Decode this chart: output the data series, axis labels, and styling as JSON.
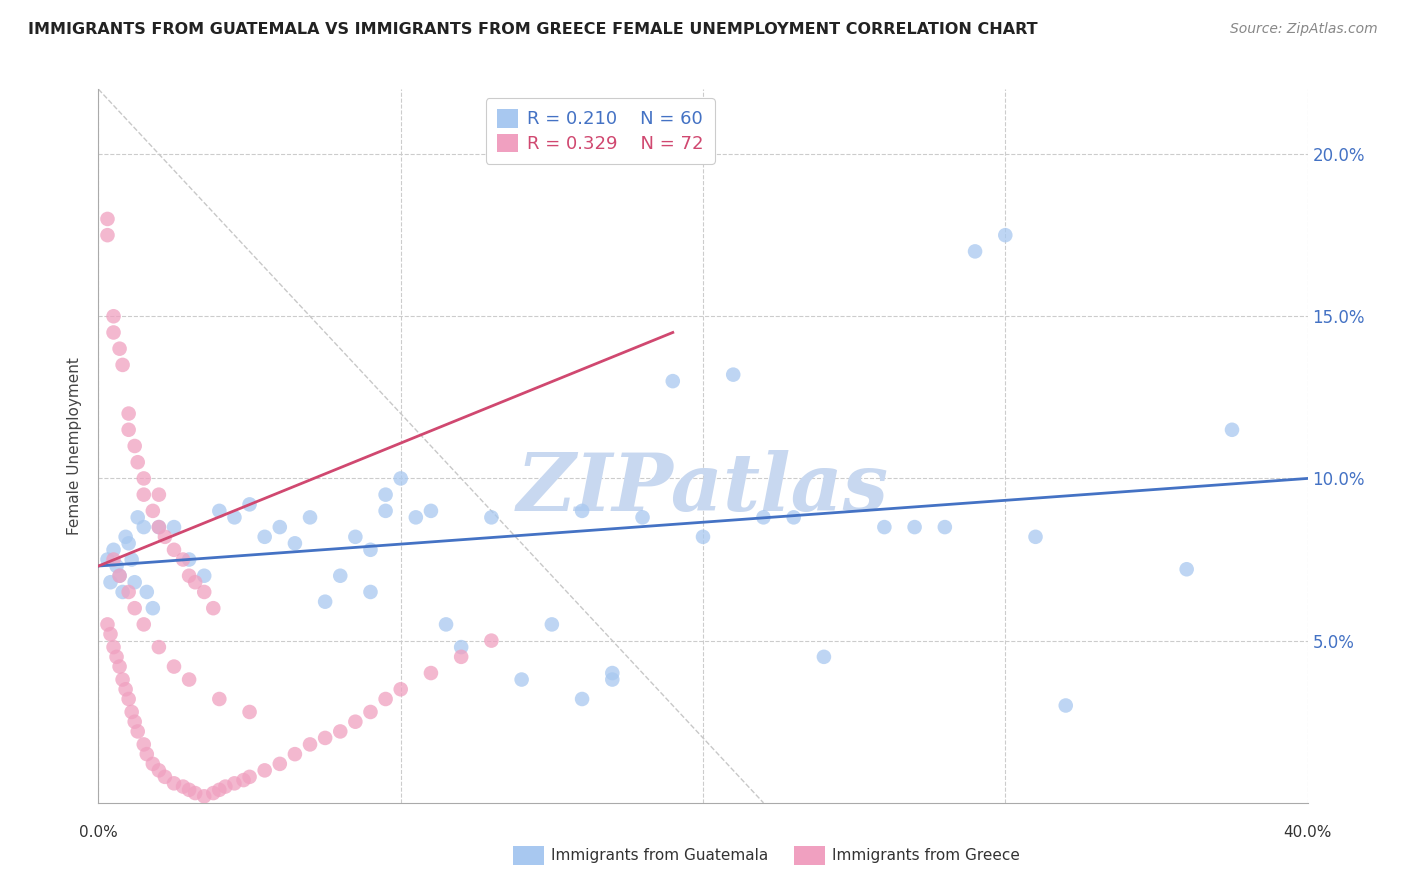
{
  "title": "IMMIGRANTS FROM GUATEMALA VS IMMIGRANTS FROM GREECE FEMALE UNEMPLOYMENT CORRELATION CHART",
  "source": "Source: ZipAtlas.com",
  "ylabel": "Female Unemployment",
  "xlim": [
    0.0,
    0.4
  ],
  "ylim": [
    0.0,
    0.22
  ],
  "legend_r1": "R = 0.210",
  "legend_n1": "N = 60",
  "legend_r2": "R = 0.329",
  "legend_n2": "N = 72",
  "color_guatemala": "#A8C8F0",
  "color_greece": "#F0A0C0",
  "color_trendline_guatemala": "#4472C4",
  "color_trendline_greece": "#D04870",
  "color_diagonal": "#C8C8C8",
  "watermark": "ZIPatlas",
  "watermark_color": "#C8D8F0",
  "guat_trend": [
    0.0,
    0.4,
    0.073,
    0.1
  ],
  "greece_trend": [
    0.0,
    0.19,
    0.073,
    0.145
  ],
  "diagonal": [
    0.0,
    0.22,
    0.22,
    0.0
  ],
  "guatemala_points_x": [
    0.003,
    0.004,
    0.005,
    0.006,
    0.007,
    0.008,
    0.009,
    0.01,
    0.011,
    0.012,
    0.013,
    0.015,
    0.016,
    0.018,
    0.02,
    0.025,
    0.03,
    0.035,
    0.04,
    0.045,
    0.05,
    0.055,
    0.06,
    0.065,
    0.07,
    0.075,
    0.08,
    0.085,
    0.09,
    0.095,
    0.1,
    0.105,
    0.11,
    0.115,
    0.12,
    0.13,
    0.14,
    0.15,
    0.16,
    0.17,
    0.18,
    0.19,
    0.2,
    0.21,
    0.22,
    0.23,
    0.24,
    0.26,
    0.27,
    0.29,
    0.3,
    0.31,
    0.36,
    0.375,
    0.09,
    0.095,
    0.16,
    0.17,
    0.28,
    0.32
  ],
  "guatemala_points_y": [
    0.075,
    0.068,
    0.078,
    0.073,
    0.07,
    0.065,
    0.082,
    0.08,
    0.075,
    0.068,
    0.088,
    0.085,
    0.065,
    0.06,
    0.085,
    0.085,
    0.075,
    0.07,
    0.09,
    0.088,
    0.092,
    0.082,
    0.085,
    0.08,
    0.088,
    0.062,
    0.07,
    0.082,
    0.078,
    0.095,
    0.1,
    0.088,
    0.09,
    0.055,
    0.048,
    0.088,
    0.038,
    0.055,
    0.032,
    0.038,
    0.088,
    0.13,
    0.082,
    0.132,
    0.088,
    0.088,
    0.045,
    0.085,
    0.085,
    0.17,
    0.175,
    0.082,
    0.072,
    0.115,
    0.065,
    0.09,
    0.09,
    0.04,
    0.085,
    0.03
  ],
  "greece_points_x": [
    0.003,
    0.003,
    0.005,
    0.005,
    0.007,
    0.008,
    0.01,
    0.01,
    0.012,
    0.013,
    0.015,
    0.018,
    0.02,
    0.022,
    0.025,
    0.028,
    0.03,
    0.032,
    0.035,
    0.038,
    0.003,
    0.004,
    0.005,
    0.006,
    0.007,
    0.008,
    0.009,
    0.01,
    0.011,
    0.012,
    0.013,
    0.015,
    0.016,
    0.018,
    0.02,
    0.022,
    0.025,
    0.028,
    0.03,
    0.032,
    0.035,
    0.038,
    0.04,
    0.042,
    0.045,
    0.048,
    0.05,
    0.055,
    0.06,
    0.065,
    0.07,
    0.075,
    0.08,
    0.085,
    0.09,
    0.095,
    0.1,
    0.11,
    0.12,
    0.13,
    0.005,
    0.007,
    0.01,
    0.012,
    0.015,
    0.02,
    0.025,
    0.03,
    0.04,
    0.05,
    0.015,
    0.02
  ],
  "greece_points_y": [
    0.18,
    0.175,
    0.15,
    0.145,
    0.14,
    0.135,
    0.12,
    0.115,
    0.11,
    0.105,
    0.095,
    0.09,
    0.085,
    0.082,
    0.078,
    0.075,
    0.07,
    0.068,
    0.065,
    0.06,
    0.055,
    0.052,
    0.048,
    0.045,
    0.042,
    0.038,
    0.035,
    0.032,
    0.028,
    0.025,
    0.022,
    0.018,
    0.015,
    0.012,
    0.01,
    0.008,
    0.006,
    0.005,
    0.004,
    0.003,
    0.002,
    0.003,
    0.004,
    0.005,
    0.006,
    0.007,
    0.008,
    0.01,
    0.012,
    0.015,
    0.018,
    0.02,
    0.022,
    0.025,
    0.028,
    0.032,
    0.035,
    0.04,
    0.045,
    0.05,
    0.075,
    0.07,
    0.065,
    0.06,
    0.055,
    0.048,
    0.042,
    0.038,
    0.032,
    0.028,
    0.1,
    0.095
  ]
}
